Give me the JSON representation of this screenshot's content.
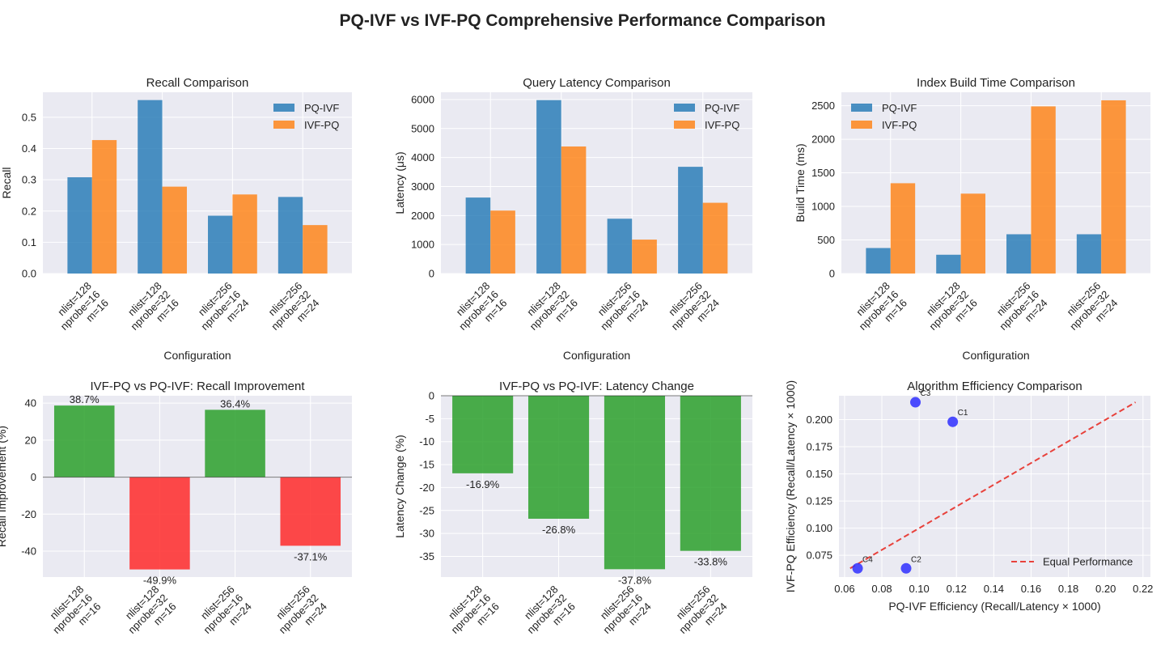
{
  "figure": {
    "title": "PQ-IVF vs IVF-PQ Comprehensive Performance Comparison"
  },
  "colors": {
    "pq_ivf": "#1f77b4",
    "ivf_pq": "#ff7f0e",
    "positive": "#2ca02c",
    "negative": "#ff2a2a",
    "point": "#2f2fff",
    "line": "#e8413b",
    "panel_bg": "#eaeaf2",
    "grid": "#ffffff"
  },
  "configs": [
    [
      "nlist=128",
      "nprobe=16",
      "m=16"
    ],
    [
      "nlist=128",
      "nprobe=32",
      "m=16"
    ],
    [
      "nlist=256",
      "nprobe=16",
      "m=24"
    ],
    [
      "nlist=256",
      "nprobe=32",
      "m=24"
    ]
  ],
  "chart_data": [
    {
      "id": "recall",
      "type": "bar",
      "title": "Recall Comparison",
      "xlabel": "Configuration",
      "ylabel": "Recall",
      "ylim": [
        0,
        0.58
      ],
      "yticks": [
        0.0,
        0.1,
        0.2,
        0.3,
        0.4,
        0.5
      ],
      "tick_format": "1",
      "legend": "top-right",
      "series": [
        {
          "name": "PQ-IVF",
          "values": [
            0.308,
            0.555,
            0.185,
            0.245
          ]
        },
        {
          "name": "IVF-PQ",
          "values": [
            0.427,
            0.278,
            0.253,
            0.155
          ]
        }
      ]
    },
    {
      "id": "latency",
      "type": "bar",
      "title": "Query Latency Comparison",
      "xlabel": "Configuration",
      "ylabel": "Latency (μs)",
      "ylim": [
        0,
        6250
      ],
      "yticks": [
        0,
        1000,
        2000,
        3000,
        4000,
        5000,
        6000
      ],
      "tick_format": "0",
      "legend": "top-right",
      "series": [
        {
          "name": "PQ-IVF",
          "values": [
            2620,
            5980,
            1890,
            3680
          ]
        },
        {
          "name": "IVF-PQ",
          "values": [
            2170,
            4380,
            1170,
            2440
          ]
        }
      ]
    },
    {
      "id": "build",
      "type": "bar",
      "title": "Index Build Time Comparison",
      "xlabel": "Configuration",
      "ylabel": "Build Time (ms)",
      "ylim": [
        0,
        2700
      ],
      "yticks": [
        0,
        500,
        1000,
        1500,
        2000,
        2500
      ],
      "tick_format": "0",
      "legend": "top-left",
      "series": [
        {
          "name": "PQ-IVF",
          "values": [
            380,
            280,
            585,
            585
          ]
        },
        {
          "name": "IVF-PQ",
          "values": [
            1345,
            1190,
            2490,
            2580
          ]
        }
      ]
    },
    {
      "id": "recall_improve",
      "type": "bar",
      "title": "IVF-PQ vs PQ-IVF: Recall Improvement",
      "xlabel": "",
      "ylabel": "Recall Improvement (%)",
      "ylim": [
        -54,
        44
      ],
      "yticks": [
        -40,
        -20,
        0,
        20,
        40
      ],
      "tick_format": "0",
      "values": [
        38.7,
        -49.9,
        36.4,
        -37.1
      ],
      "labels": [
        "38.7%",
        "-49.9%",
        "36.4%",
        "-37.1%"
      ]
    },
    {
      "id": "latency_change",
      "type": "bar",
      "title": "IVF-PQ vs PQ-IVF: Latency Change",
      "xlabel": "",
      "ylabel": "Latency Change (%)",
      "ylim": [
        -39.5,
        0
      ],
      "yticks": [
        0,
        -5,
        -10,
        -15,
        -20,
        -25,
        -30,
        -35
      ],
      "tick_format": "0",
      "values": [
        -16.9,
        -26.8,
        -37.8,
        -33.8
      ],
      "labels": [
        "-16.9%",
        "-26.8%",
        "-37.8%",
        "-33.8%"
      ]
    },
    {
      "id": "efficiency",
      "type": "scatter",
      "title": "Algorithm Efficiency Comparison",
      "xlabel": "PQ-IVF Efficiency (Recall/Latency × 1000)",
      "ylabel": "IVF-PQ Efficiency (Recall/Latency × 1000)",
      "xlim": [
        0.057,
        0.224
      ],
      "ylim": [
        0.055,
        0.222
      ],
      "xticks": [
        0.06,
        0.08,
        0.1,
        0.12,
        0.14,
        0.16,
        0.18,
        0.2,
        0.22
      ],
      "yticks": [
        0.075,
        0.1,
        0.125,
        0.15,
        0.175,
        0.2
      ],
      "xtick_format": "2",
      "ytick_format": "3",
      "legend": "bottom-right",
      "points": [
        {
          "label": "C1",
          "x": 0.118,
          "y": 0.198
        },
        {
          "label": "C2",
          "x": 0.093,
          "y": 0.063
        },
        {
          "label": "C3",
          "x": 0.098,
          "y": 0.216
        },
        {
          "label": "C4",
          "x": 0.067,
          "y": 0.063
        }
      ],
      "line": {
        "name": "Equal Performance",
        "x": [
          0.063,
          0.216
        ],
        "y": [
          0.063,
          0.216
        ]
      }
    }
  ]
}
